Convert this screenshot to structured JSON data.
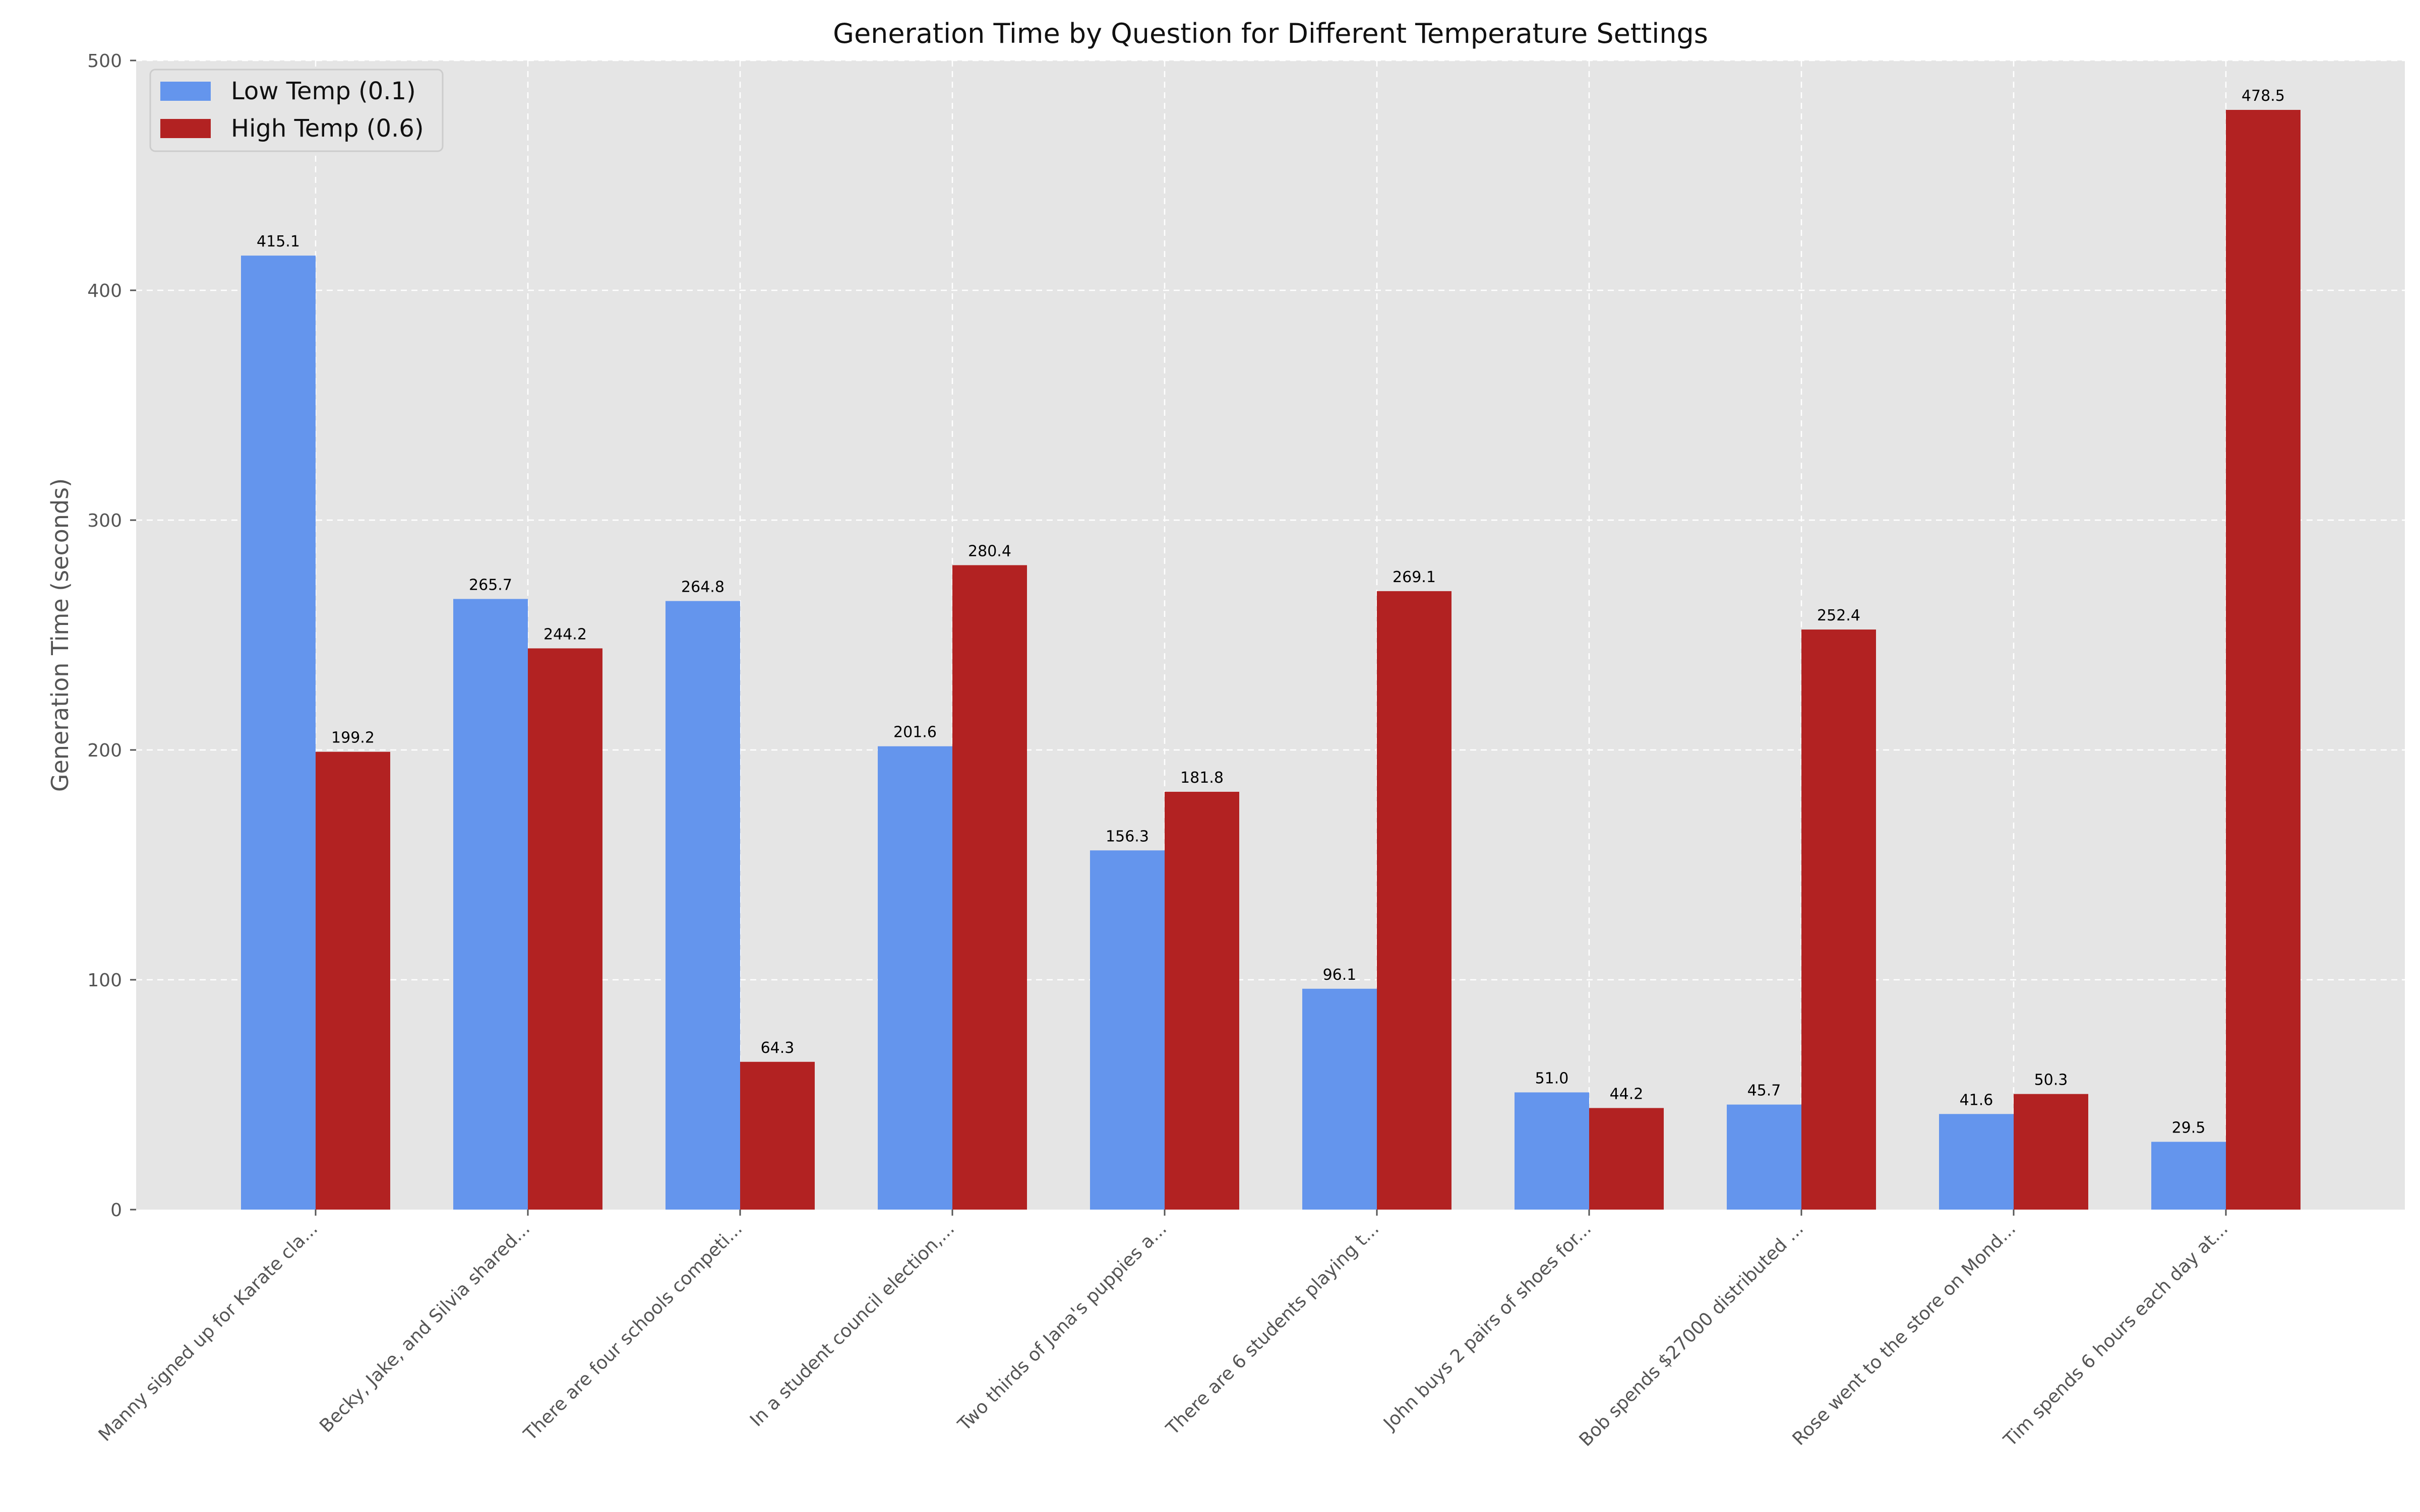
{
  "chart_data": {
    "type": "bar",
    "title": "Generation Time by Question for Different Temperature Settings",
    "xlabel": "",
    "ylabel": "Generation Time (seconds)",
    "ylim": [
      0,
      500
    ],
    "yticks": [
      "0",
      "100",
      "200",
      "300",
      "400",
      "500"
    ],
    "grid": true,
    "legend_position": "top-left",
    "categories": [
      "Manny signed up for Karate cla...",
      "Becky, Jake, and Silvia shared...",
      "There are four schools competi...",
      "In a student council election,...",
      "Two thirds of Jana's puppies a...",
      "There are 6 students playing t...",
      "John buys 2 pairs of shoes for...",
      "Bob spends $27000 distributed ...",
      "Rose went to the store on Mond...",
      "Tim spends 6 hours each day at..."
    ],
    "series": [
      {
        "name": "Low Temp (0.1)",
        "color": "#6495ED",
        "values": [
          415.1,
          265.7,
          264.8,
          201.6,
          156.3,
          96.1,
          51.0,
          45.7,
          41.6,
          29.5
        ],
        "labels": [
          "415.1",
          "265.7",
          "264.8",
          "201.6",
          "156.3",
          "96.1",
          "51.0",
          "45.7",
          "41.6",
          "29.5"
        ]
      },
      {
        "name": "High Temp (0.6)",
        "color": "#B22222",
        "values": [
          199.2,
          244.2,
          64.3,
          280.4,
          181.8,
          269.1,
          44.2,
          252.4,
          50.3,
          478.5
        ],
        "labels": [
          "199.2",
          "244.2",
          "64.3",
          "280.4",
          "181.8",
          "269.1",
          "44.2",
          "252.4",
          "50.3",
          "478.5"
        ]
      }
    ]
  }
}
